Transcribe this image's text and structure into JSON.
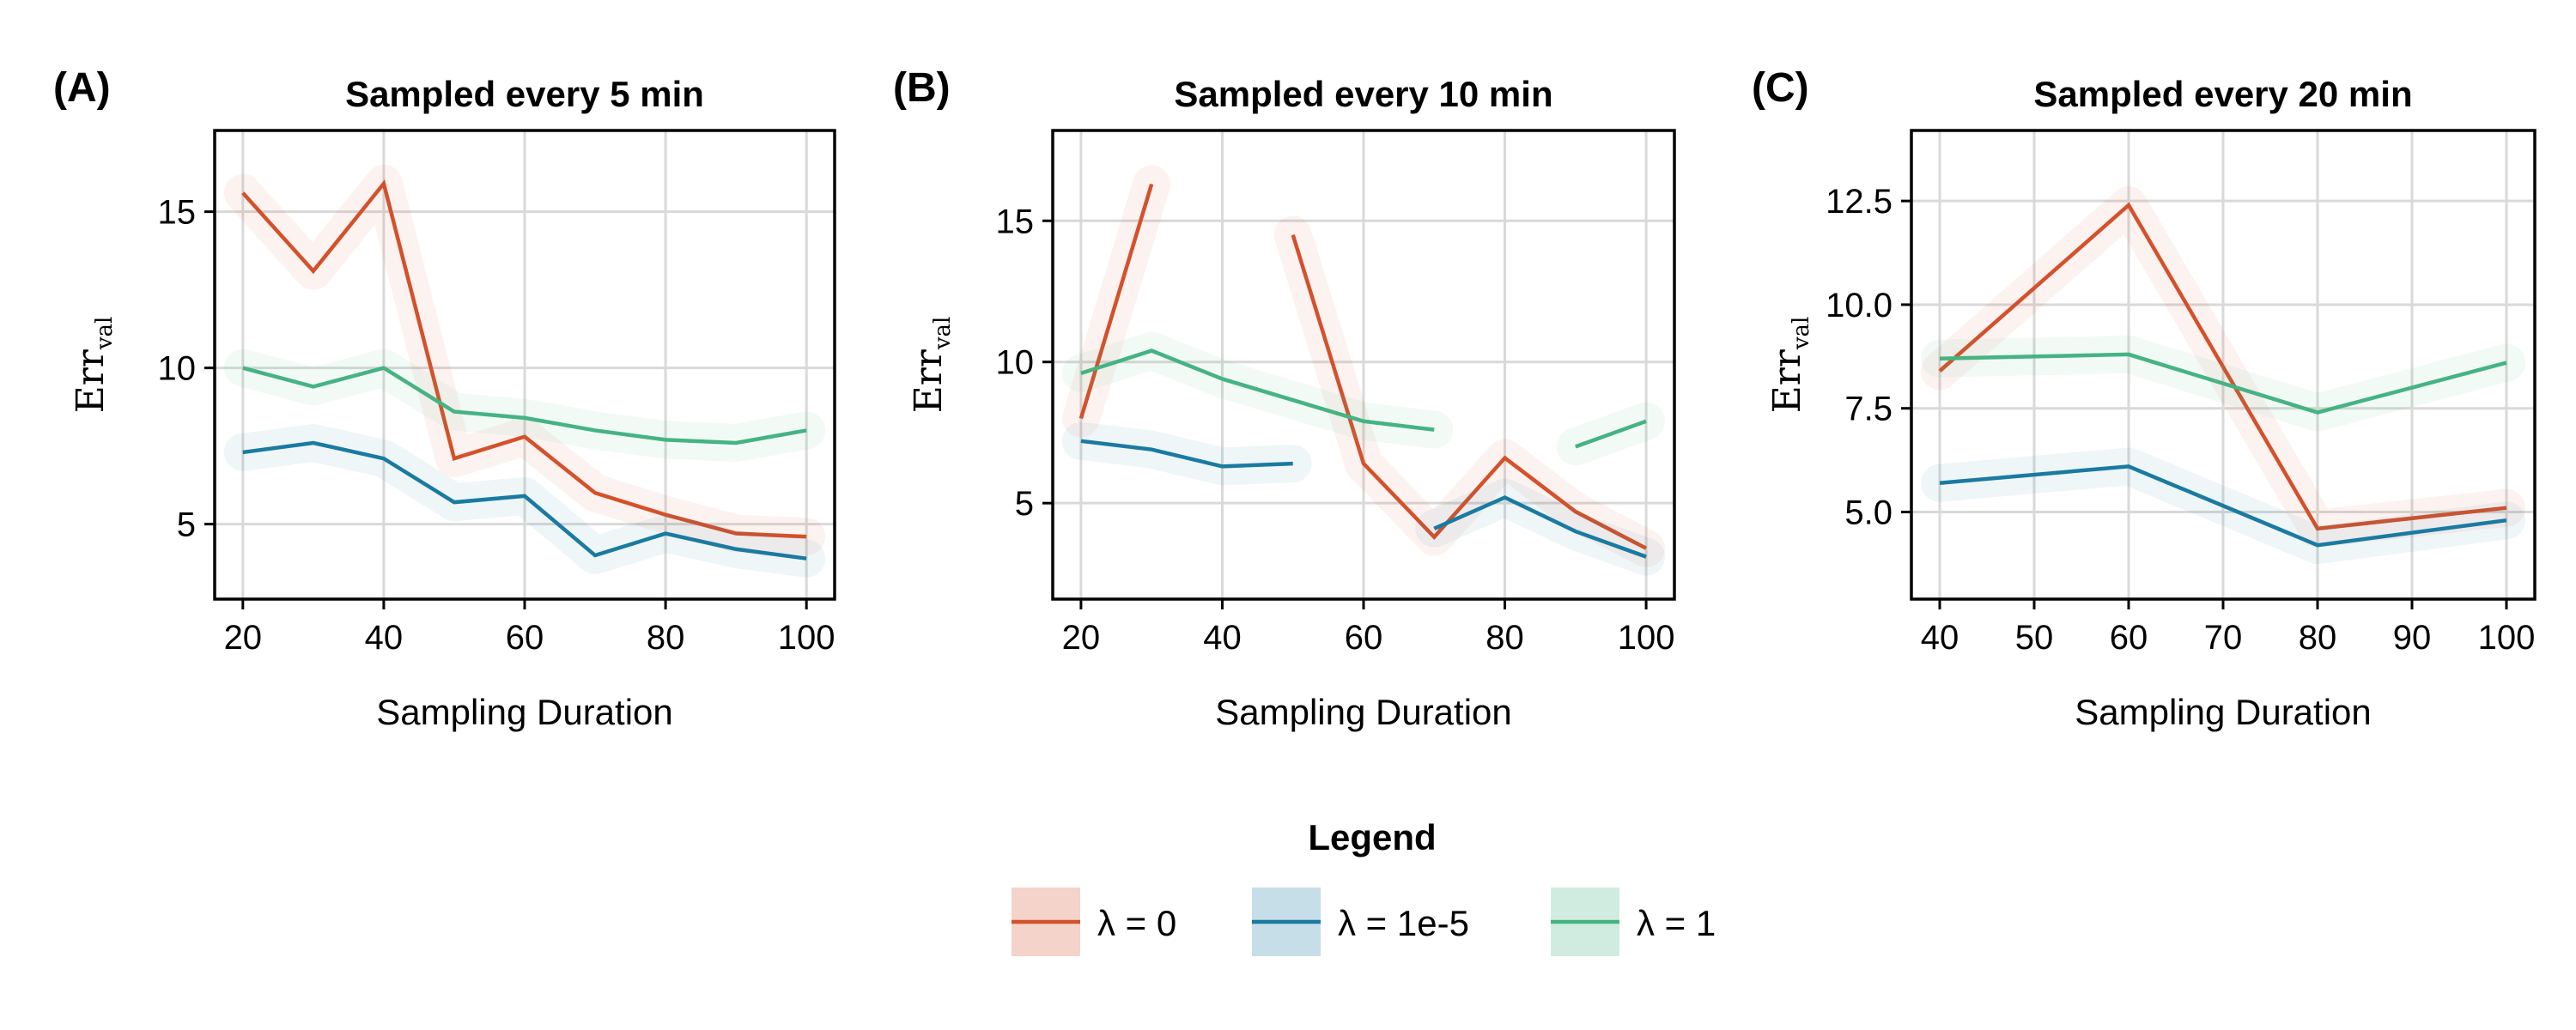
{
  "colors": {
    "lambda0": "#d4512b",
    "lambda1e5": "#1a7aa1",
    "lambda1": "#45b382"
  },
  "chart_data": [
    {
      "type": "line",
      "panel_label": "(A)",
      "title": "Sampled every 5 min",
      "xlabel": "Sampling Duration",
      "ylabel": "Err",
      "ylabel_subscript": "val",
      "xlim": [
        16,
        104
      ],
      "ylim": [
        2.6,
        17.6
      ],
      "xticks": [
        20,
        40,
        60,
        80,
        100
      ],
      "yticks": [
        5,
        10,
        15
      ],
      "ytick_labels": [
        "5",
        "10",
        "15"
      ],
      "grid": true,
      "x": [
        20,
        30,
        40,
        50,
        60,
        70,
        80,
        90,
        100
      ],
      "series": [
        {
          "name": "λ = 0",
          "color": "#d4512b",
          "values": [
            15.6,
            13.1,
            15.9,
            7.1,
            7.8,
            6.0,
            5.3,
            4.7,
            4.6
          ]
        },
        {
          "name": "λ = 1e-5",
          "color": "#1a7aa1",
          "values": [
            7.3,
            7.6,
            7.1,
            5.7,
            5.9,
            4.0,
            4.7,
            4.2,
            3.9
          ]
        },
        {
          "name": "λ = 1",
          "color": "#45b382",
          "values": [
            10.0,
            9.4,
            10.0,
            8.6,
            8.4,
            8.0,
            7.7,
            7.6,
            8.0
          ]
        }
      ]
    },
    {
      "type": "line",
      "panel_label": "(B)",
      "title": "Sampled every 10 min",
      "xlabel": "Sampling Duration",
      "ylabel": "Err",
      "ylabel_subscript": "val",
      "xlim": [
        16,
        104
      ],
      "ylim": [
        1.6,
        18.2
      ],
      "xticks": [
        20,
        40,
        60,
        80,
        100
      ],
      "yticks": [
        5,
        10,
        15
      ],
      "ytick_labels": [
        "5",
        "10",
        "15"
      ],
      "grid": true,
      "series": [
        {
          "name": "λ = 0",
          "color": "#d4512b",
          "segments": [
            {
              "x": [
                20,
                30
              ],
              "values": [
                8.0,
                16.3
              ]
            },
            {
              "x": [
                50,
                60,
                70,
                80,
                90,
                100
              ],
              "values": [
                14.5,
                6.4,
                3.8,
                6.6,
                4.7,
                3.4
              ]
            }
          ]
        },
        {
          "name": "λ = 1e-5",
          "color": "#1a7aa1",
          "segments": [
            {
              "x": [
                20,
                30,
                40,
                50
              ],
              "values": [
                7.2,
                6.9,
                6.3,
                6.4
              ]
            },
            {
              "x": [
                70,
                80,
                90,
                100
              ],
              "values": [
                4.1,
                5.2,
                4.0,
                3.1
              ]
            }
          ]
        },
        {
          "name": "λ = 1",
          "color": "#45b382",
          "segments": [
            {
              "x": [
                20,
                30,
                40,
                60,
                70
              ],
              "values": [
                9.6,
                10.4,
                9.4,
                7.9,
                7.6
              ]
            },
            {
              "x": [
                90,
                100
              ],
              "values": [
                7.0,
                7.9
              ]
            }
          ]
        }
      ]
    },
    {
      "type": "line",
      "panel_label": "(C)",
      "title": "Sampled every 20 min",
      "xlabel": "Sampling Duration",
      "ylabel": "Err",
      "ylabel_subscript": "val",
      "xlim": [
        37,
        103
      ],
      "ylim": [
        2.9,
        14.2
      ],
      "xticks": [
        40,
        50,
        60,
        70,
        80,
        90,
        100
      ],
      "yticks": [
        5,
        7.5,
        10,
        12.5
      ],
      "ytick_labels": [
        "5.0",
        "7.5",
        "10.0",
        "12.5"
      ],
      "grid": true,
      "x": [
        40,
        60,
        80,
        100
      ],
      "series": [
        {
          "name": "λ = 0",
          "color": "#d4512b",
          "values": [
            8.4,
            12.4,
            4.6,
            5.1
          ]
        },
        {
          "name": "λ = 1e-5",
          "color": "#1a7aa1",
          "values": [
            5.7,
            6.1,
            4.2,
            4.8
          ]
        },
        {
          "name": "λ = 1",
          "color": "#45b382",
          "values": [
            8.7,
            8.8,
            7.4,
            8.6
          ]
        }
      ]
    }
  ],
  "legend": {
    "title": "Legend",
    "placement": "bottom-center",
    "items": [
      {
        "label": "λ = 0",
        "color": "#d4512b"
      },
      {
        "label": "λ = 1e-5",
        "color": "#1a7aa1"
      },
      {
        "label": "λ = 1",
        "color": "#45b382"
      }
    ]
  }
}
